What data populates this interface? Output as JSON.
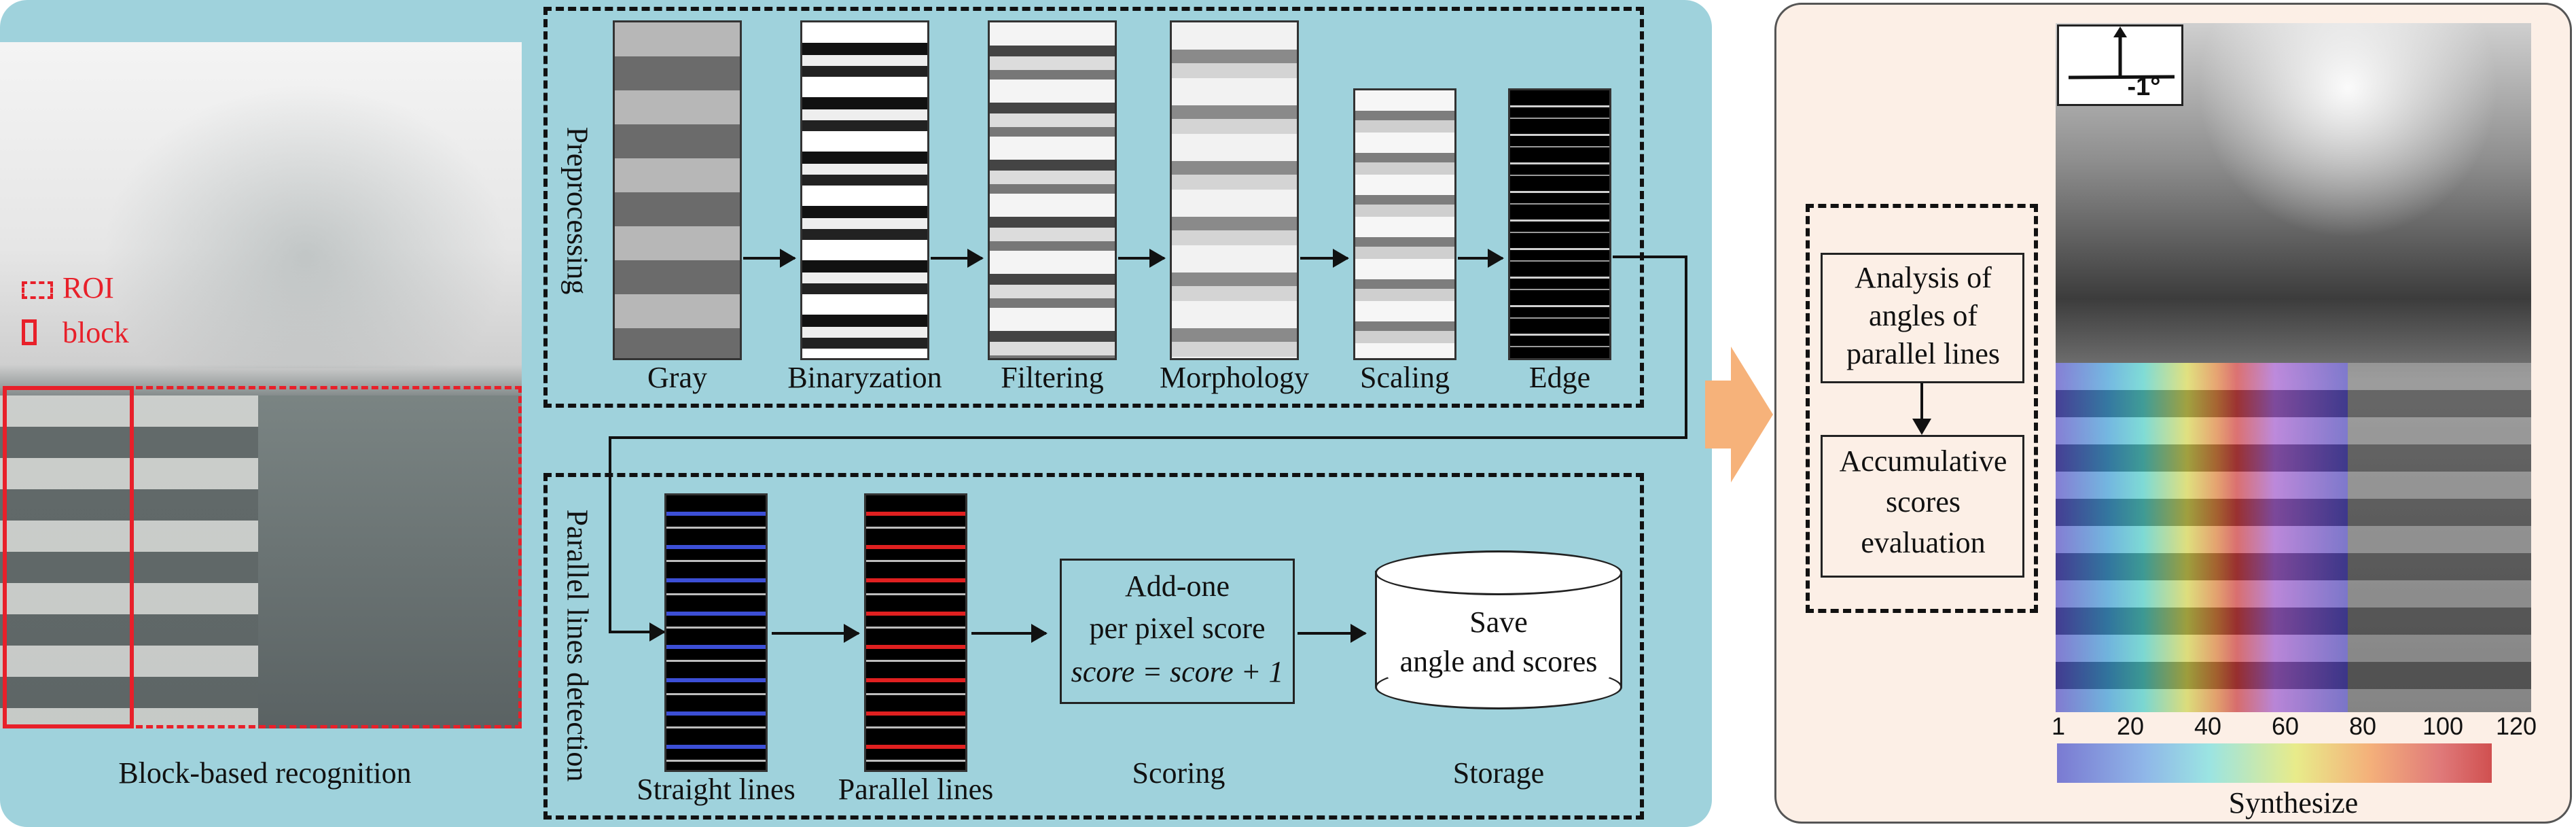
{
  "left_panel": {
    "legend_roi": "ROI",
    "legend_block": "block",
    "caption": "Block-based recognition"
  },
  "preprocessing": {
    "title": "Preprocessing",
    "steps": [
      "Gray",
      "Binaryzation",
      "Filtering",
      "Morphology",
      "Scaling",
      "Edge"
    ]
  },
  "parallel": {
    "title": "Parallel lines detection",
    "steps": [
      "Straight lines",
      "Parallel lines",
      "Scoring",
      "Storage"
    ],
    "scoring_line1": "Add-one",
    "scoring_line2": "per pixel score",
    "scoring_formula": "score = score + 1",
    "storage_line1": "Save",
    "storage_line2": "angle and scores"
  },
  "right_panel": {
    "box1": [
      "Analysis  of",
      "angles of",
      "parallel lines"
    ],
    "box2": [
      "Accumulative",
      "scores",
      "evaluation"
    ],
    "angle_label": "-1°",
    "colorbar_ticks": [
      "1",
      "20",
      "40",
      "60",
      "80",
      "100",
      "120"
    ],
    "caption": "Synthesize"
  },
  "colors": {
    "panel_blue": "#9fd2dc",
    "panel_peach": "#fcefe6",
    "arrow_orange": "#f6b27a",
    "roi_red": "#e8202a"
  }
}
